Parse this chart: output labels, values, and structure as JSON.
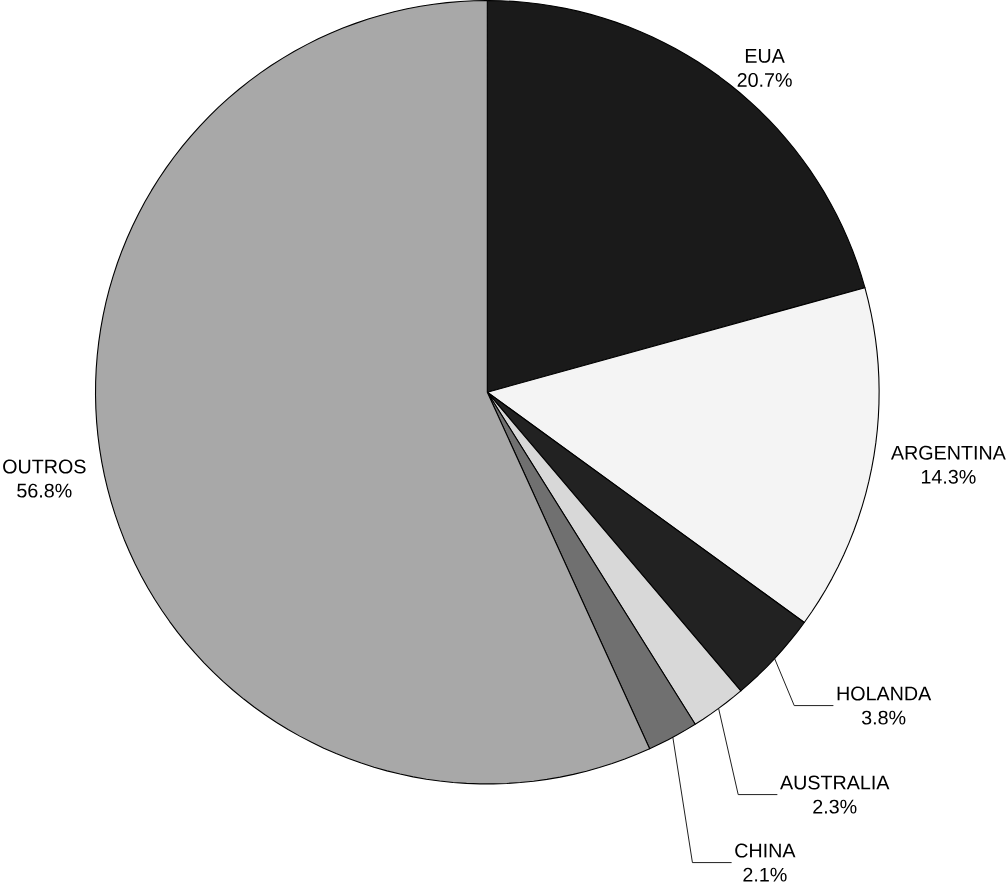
{
  "chart_data": {
    "type": "pie",
    "categories": [
      "EUA",
      "ARGENTINA",
      "HOLANDA",
      "AUSTRALIA",
      "CHINA",
      "OUTROS"
    ],
    "values": [
      20.7,
      14.3,
      3.8,
      2.3,
      2.1,
      56.8
    ],
    "value_labels": [
      "20.7%",
      "14.3%",
      "3.8%",
      "2.3%",
      "2.1%",
      "56.8%"
    ],
    "colors": [
      "#1a1a1a",
      "#f4f4f4",
      "#222222",
      "#d8d8d8",
      "#707070",
      "#a8a8a8"
    ]
  }
}
